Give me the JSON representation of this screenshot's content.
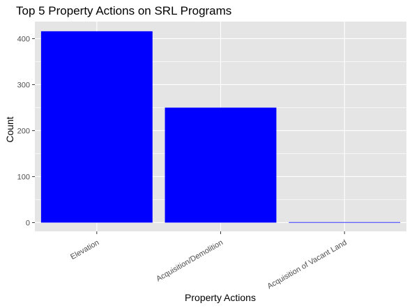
{
  "chart_data": {
    "type": "bar",
    "title": "Top 5 Property Actions on SRL Programs",
    "xlabel": "Property Actions",
    "ylabel": "Count",
    "categories": [
      "Elevation",
      "Acquisition/Demolition",
      "Acquisition of Vacant Land"
    ],
    "values": [
      416,
      250,
      1
    ],
    "ylim": [
      -19,
      437
    ],
    "yticks": [
      0,
      100,
      200,
      300,
      400
    ],
    "grid": true,
    "legend": "none",
    "bar_color": "#0000ff",
    "panel_background": "#e5e5e5",
    "grid_color": "#ffffff"
  }
}
